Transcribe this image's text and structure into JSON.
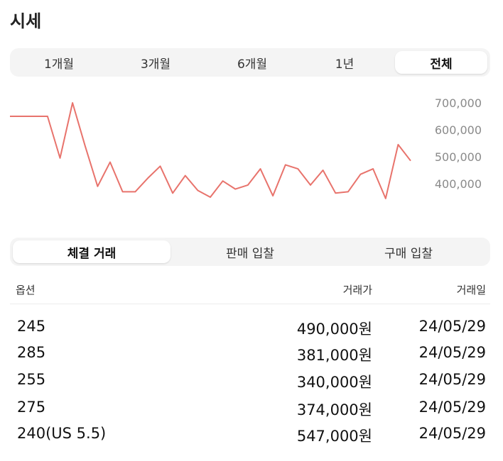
{
  "header": {
    "title": "시세"
  },
  "period_tabs": [
    {
      "label": "1개월",
      "active": false
    },
    {
      "label": "3개월",
      "active": false
    },
    {
      "label": "6개월",
      "active": false
    },
    {
      "label": "1년",
      "active": false
    },
    {
      "label": "전체",
      "active": true
    }
  ],
  "chart_data": {
    "type": "line",
    "title": "",
    "xlabel": "",
    "ylabel": "",
    "y_tick_labels": [
      "700,000",
      "600,000",
      "500,000",
      "400,000"
    ],
    "y_ticks": [
      700000,
      600000,
      500000,
      400000
    ],
    "ylim": [
      320000,
      730000
    ],
    "grid": false,
    "legend": "none",
    "color": "#e8736c",
    "series": [
      {
        "values": [
          650000,
          650000,
          650000,
          650000,
          495000,
          700000,
          540000,
          390000,
          480000,
          370000,
          370000,
          420000,
          465000,
          365000,
          430000,
          375000,
          350000,
          410000,
          380000,
          395000,
          455000,
          355000,
          470000,
          455000,
          395000,
          450000,
          365000,
          370000,
          435000,
          455000,
          345000,
          545000,
          485000
        ]
      }
    ]
  },
  "trade_tabs": [
    {
      "label": "체결 거래",
      "active": true
    },
    {
      "label": "판매 입찰",
      "active": false
    },
    {
      "label": "구매 입찰",
      "active": false
    }
  ],
  "table": {
    "headers": {
      "option": "옵션",
      "price": "거래가",
      "date": "거래일"
    },
    "rows": [
      {
        "option": "245",
        "price": "490,000원",
        "date": "24/05/29"
      },
      {
        "option": "285",
        "price": "381,000원",
        "date": "24/05/29"
      },
      {
        "option": "255",
        "price": "340,000원",
        "date": "24/05/29"
      },
      {
        "option": "275",
        "price": "374,000원",
        "date": "24/05/29"
      },
      {
        "option": "240(US 5.5)",
        "price": "547,000원",
        "date": "24/05/29"
      }
    ]
  }
}
